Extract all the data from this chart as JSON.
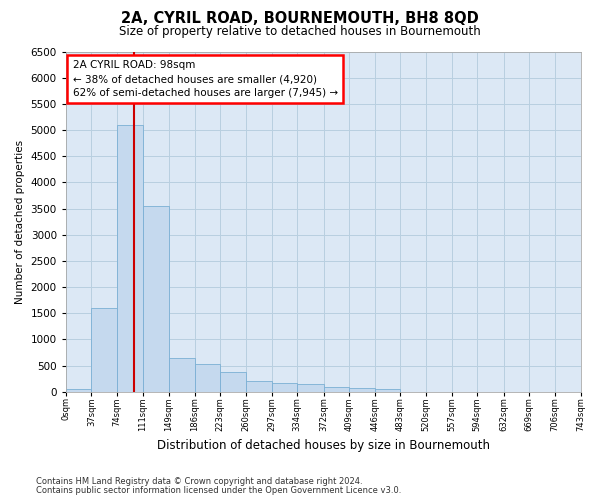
{
  "title": "2A, CYRIL ROAD, BOURNEMOUTH, BH8 8QD",
  "subtitle": "Size of property relative to detached houses in Bournemouth",
  "xlabel": "Distribution of detached houses by size in Bournemouth",
  "ylabel": "Number of detached properties",
  "footnote1": "Contains HM Land Registry data © Crown copyright and database right 2024.",
  "footnote2": "Contains public sector information licensed under the Open Government Licence v3.0.",
  "property_size": 98,
  "annotation_title": "2A CYRIL ROAD: 98sqm",
  "annotation_line1": "← 38% of detached houses are smaller (4,920)",
  "annotation_line2": "62% of semi-detached houses are larger (7,945) →",
  "bar_color": "#c5d9ee",
  "bar_edge_color": "#7aafd4",
  "vline_color": "#cc0000",
  "grid_color": "#b8cfe0",
  "bg_color": "#dce8f5",
  "bin_edges": [
    0,
    37,
    74,
    111,
    149,
    186,
    223,
    260,
    297,
    334,
    372,
    409,
    446,
    483,
    520,
    557,
    594,
    632,
    669,
    706,
    743
  ],
  "bin_labels": [
    "0sqm",
    "37sqm",
    "74sqm",
    "111sqm",
    "149sqm",
    "186sqm",
    "223sqm",
    "260sqm",
    "297sqm",
    "334sqm",
    "372sqm",
    "409sqm",
    "446sqm",
    "483sqm",
    "520sqm",
    "557sqm",
    "594sqm",
    "632sqm",
    "669sqm",
    "706sqm",
    "743sqm"
  ],
  "bar_heights": [
    50,
    1600,
    5100,
    3550,
    650,
    530,
    380,
    200,
    170,
    150,
    100,
    80,
    50,
    0,
    0,
    0,
    0,
    0,
    0,
    0
  ],
  "ylim_max": 6500,
  "yticks": [
    0,
    500,
    1000,
    1500,
    2000,
    2500,
    3000,
    3500,
    4000,
    4500,
    5000,
    5500,
    6000,
    6500
  ]
}
